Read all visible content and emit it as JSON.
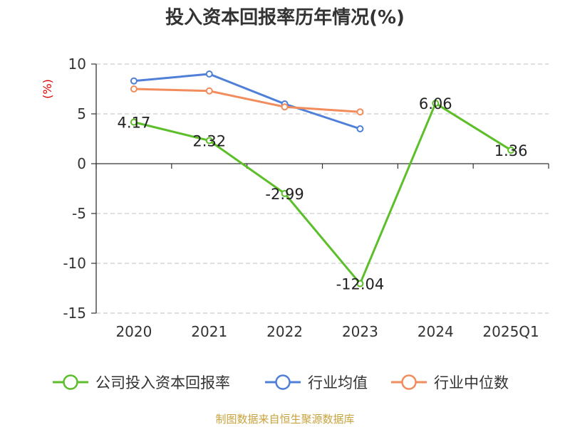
{
  "chart_data": {
    "type": "line",
    "title": "投入资本回报率历年情况(%)",
    "ylabel": "(%)",
    "categories": [
      "2020",
      "2021",
      "2022",
      "2023",
      "2024",
      "2025Q1"
    ],
    "ylim": [
      -15,
      10
    ],
    "yticks": [
      10,
      5,
      0,
      -5,
      -10,
      -15
    ],
    "grid": true,
    "legend_position": "bottom",
    "series": [
      {
        "name": "公司投入资本回报率",
        "color": "#5cbf2a",
        "values": [
          4.17,
          2.32,
          -2.99,
          -12.04,
          6.06,
          1.36
        ],
        "labels": [
          "4.17",
          "2.32",
          "-2.99",
          "-12.04",
          "6.06",
          "1.36"
        ]
      },
      {
        "name": "行业均值",
        "color": "#4f7fd8",
        "values": [
          8.3,
          9.0,
          6.0,
          3.5,
          null,
          null
        ]
      },
      {
        "name": "行业中位数",
        "color": "#f28c5c",
        "values": [
          7.5,
          7.3,
          5.7,
          5.2,
          null,
          null
        ]
      }
    ]
  },
  "source": "制图数据来自恒生聚源数据库",
  "colors": {
    "ylabel": "#dd0000",
    "source": "#c8a23c",
    "axis": "#333333",
    "grid": "#cccccc"
  }
}
